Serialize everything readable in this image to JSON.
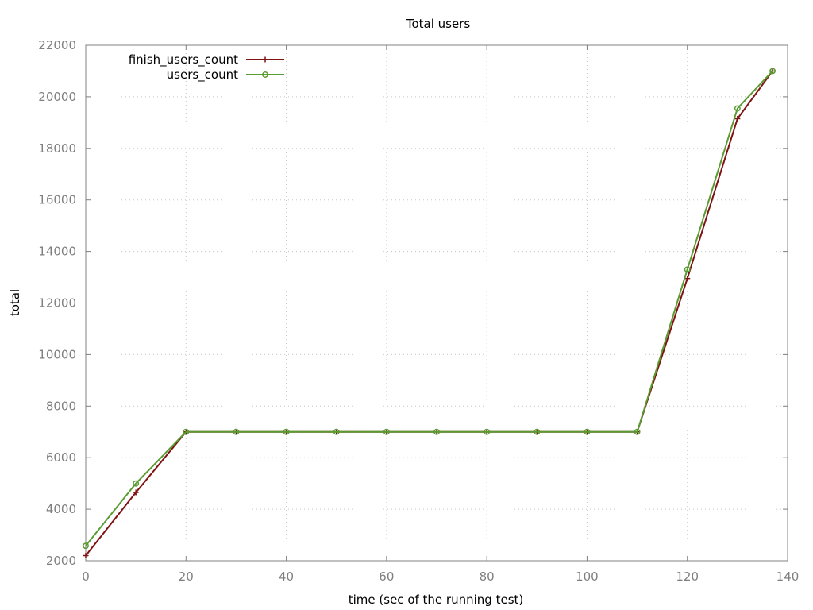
{
  "chart_data": {
    "type": "line",
    "title": "Total users",
    "xlabel": "time (sec of the running test)",
    "ylabel": "total",
    "xlim": [
      0,
      140
    ],
    "ylim": [
      2000,
      22000
    ],
    "x_ticks": [
      0,
      20,
      40,
      60,
      80,
      100,
      120,
      140
    ],
    "y_ticks": [
      2000,
      4000,
      6000,
      8000,
      10000,
      12000,
      14000,
      16000,
      18000,
      20000,
      22000
    ],
    "grid": true,
    "legend_position": "top-left",
    "series": [
      {
        "name": "finish_users_count",
        "color": "#7f1212",
        "marker": "plus",
        "points": [
          [
            0,
            2200
          ],
          [
            10,
            4650
          ],
          [
            20,
            7000
          ],
          [
            30,
            7000
          ],
          [
            40,
            7000
          ],
          [
            50,
            7000
          ],
          [
            60,
            7000
          ],
          [
            70,
            7000
          ],
          [
            80,
            7000
          ],
          [
            90,
            7000
          ],
          [
            100,
            7000
          ],
          [
            110,
            7000
          ],
          [
            120,
            12950
          ],
          [
            130,
            19150
          ],
          [
            137,
            21000
          ]
        ]
      },
      {
        "name": "users_count",
        "color": "#5a9b32",
        "marker": "circle",
        "points": [
          [
            0,
            2580
          ],
          [
            10,
            5000
          ],
          [
            20,
            7000
          ],
          [
            30,
            7000
          ],
          [
            40,
            7000
          ],
          [
            50,
            7000
          ],
          [
            60,
            7000
          ],
          [
            70,
            7000
          ],
          [
            80,
            7000
          ],
          [
            90,
            7000
          ],
          [
            100,
            7000
          ],
          [
            110,
            7000
          ],
          [
            120,
            13300
          ],
          [
            130,
            19550
          ],
          [
            137,
            21000
          ]
        ]
      }
    ]
  }
}
